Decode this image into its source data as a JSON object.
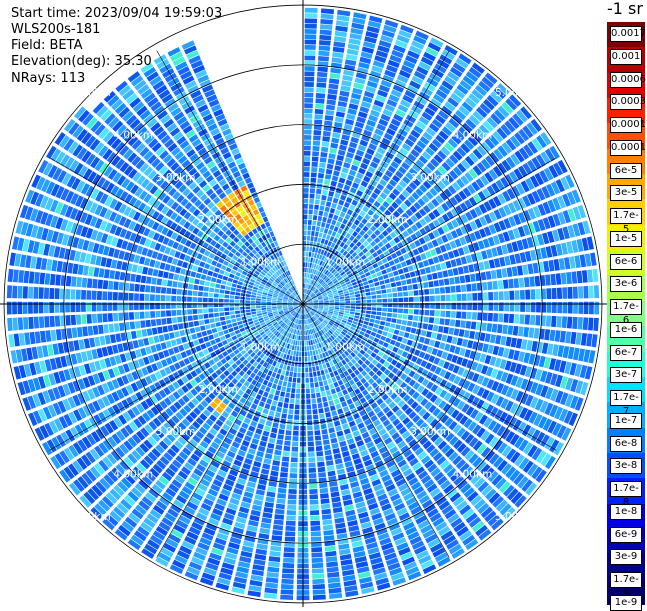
{
  "info": {
    "start_time": "Start time: 2023/09/04 19:59:03",
    "instrument": "WLS200s-181",
    "field": "Field: BETA",
    "elevation": "Elevation(deg): 35.30",
    "nrays": "NRays: 113"
  },
  "colorbar": {
    "unit": "-1 sr",
    "ticks": [
      "0.0017",
      "0.001",
      "0.0006",
      "0.0003",
      "0.00017",
      "0.0001",
      "6e-5",
      "3e-5",
      "1.7e-5",
      "1e-5",
      "6e-6",
      "3e-6",
      "1.7e-6",
      "1e-6",
      "6e-7",
      "3e-7",
      "1.7e-7",
      "1e-7",
      "6e-8",
      "3e-8",
      "1.7e-8",
      "1e-8",
      "6e-9",
      "3e-9",
      "1.7e-9",
      "1e-9"
    ],
    "colors": [
      "#800000",
      "#b40000",
      "#e00000",
      "#ff2000",
      "#ff5000",
      "#ff8000",
      "#ffa800",
      "#ffd000",
      "#f0f000",
      "#d0ff20",
      "#a8ff50",
      "#80ff80",
      "#50ffa8",
      "#20ffd8",
      "#00e0ff",
      "#00b0ff",
      "#0080ff",
      "#0050ff",
      "#0020ff",
      "#0000e0",
      "#0000b8",
      "#000090",
      "#00006a"
    ]
  },
  "chart_data": {
    "type": "polar-ppi",
    "field": "BETA",
    "range_rings_km": [
      1,
      2,
      3,
      4,
      5
    ],
    "ring_labels": [
      "1.00km",
      "2.00km",
      "3.00km",
      "4.00km",
      "5.00km"
    ],
    "max_range_km": 6.9,
    "nrays": 113,
    "missing_sector_deg": [
      337,
      360
    ],
    "aerosol_layer": {
      "azimuth_deg": [
        320,
        333
      ],
      "range_km": [
        2.1,
        3.0
      ]
    },
    "scale": "log"
  }
}
